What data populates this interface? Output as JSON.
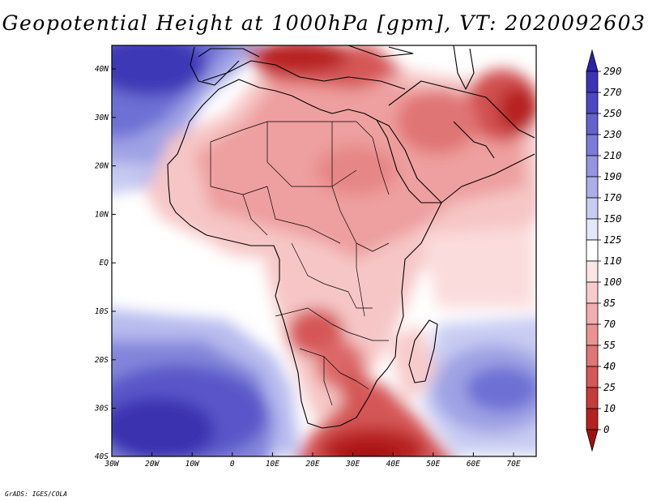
{
  "title": "Geopotential Height at 1000hPa [gpm], VT: 2020092603",
  "credit": "GrADS: IGES/COLA",
  "lat_labels": [
    "40N",
    "30N",
    "20N",
    "10N",
    "EQ",
    "10S",
    "20S",
    "30S",
    "40S"
  ],
  "lon_labels": [
    "30W",
    "20W",
    "10W",
    "0",
    "10E",
    "20E",
    "30E",
    "40E",
    "50E",
    "60E",
    "70E"
  ],
  "colorbar": {
    "levels": [
      "290",
      "270",
      "250",
      "230",
      "210",
      "190",
      "170",
      "150",
      "125",
      "110",
      "100",
      "85",
      "70",
      "55",
      "40",
      "25",
      "10",
      "0"
    ],
    "colors": [
      "#2b23a6",
      "#3b34b8",
      "#4c47c7",
      "#6462cf",
      "#7b7bd8",
      "#9494e0",
      "#acaee8",
      "#c8ccf2",
      "#e4e7f8",
      "#ffffff",
      "#fde5e5",
      "#f8cbcb",
      "#f2aeae",
      "#eb9292",
      "#e07575",
      "#d55757",
      "#c93a3a",
      "#b82020",
      "#a21010"
    ]
  }
}
